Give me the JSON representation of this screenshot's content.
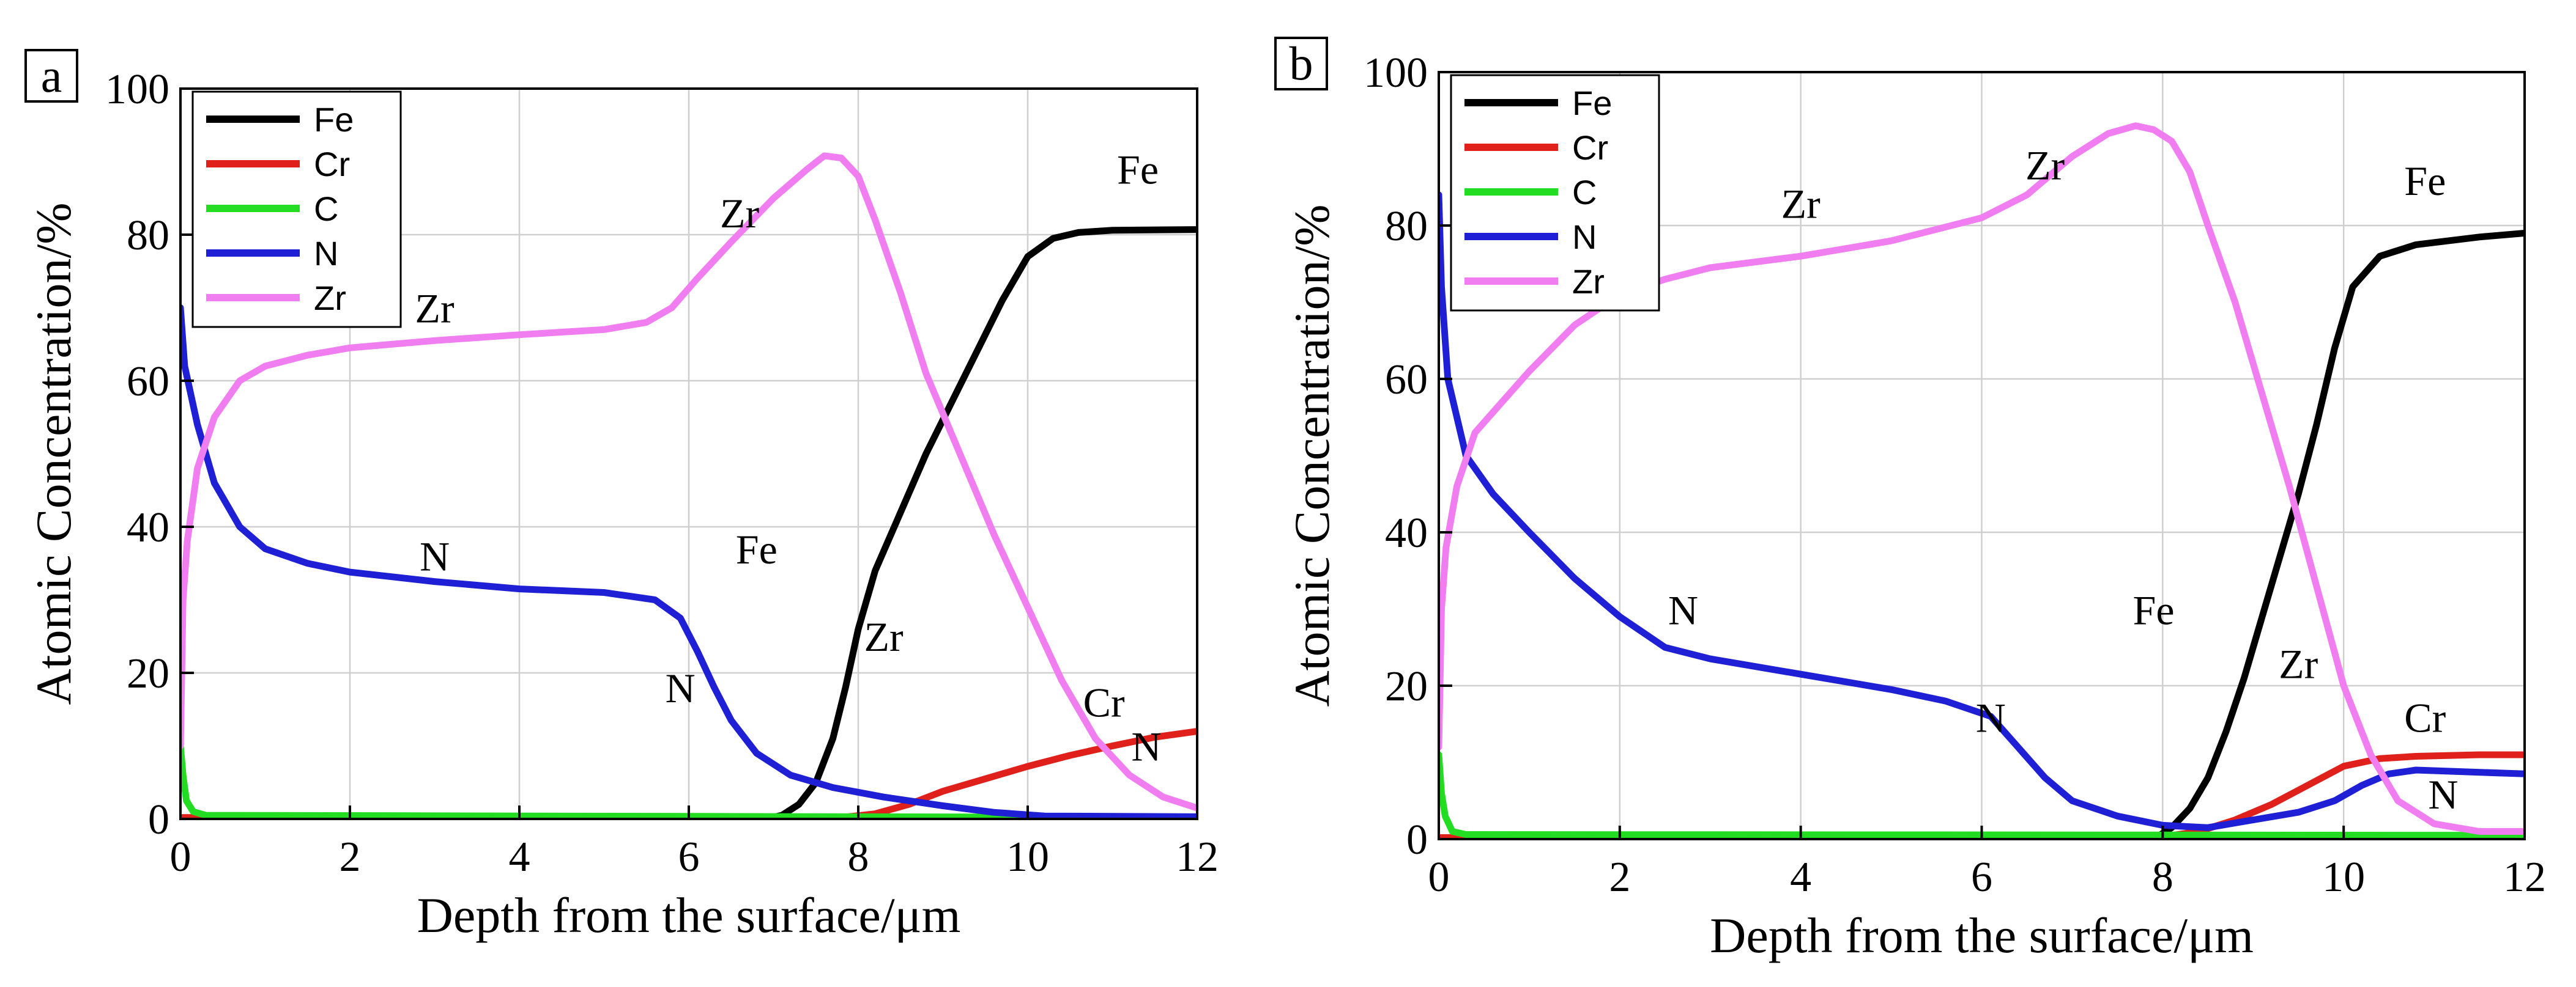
{
  "figure": {
    "panels": [
      "a",
      "b"
    ]
  },
  "chart_data": [
    {
      "type": "line",
      "panel_label": "a",
      "xlabel": "Depth from the surface/μm",
      "ylabel": "Atomic Concentration/%",
      "xlim": [
        0,
        12
      ],
      "ylim": [
        0,
        100
      ],
      "xticks": [
        0,
        2,
        4,
        6,
        8,
        10,
        12
      ],
      "yticks": [
        0,
        20,
        40,
        60,
        80,
        100
      ],
      "grid": true,
      "legend_position": "top-left",
      "series": [
        {
          "name": "Fe",
          "color": "#000000",
          "points": [
            [
              0,
              0
            ],
            [
              6.9,
              0
            ],
            [
              7.1,
              0.5
            ],
            [
              7.3,
              2
            ],
            [
              7.5,
              5
            ],
            [
              7.7,
              11
            ],
            [
              7.85,
              18
            ],
            [
              8.0,
              26
            ],
            [
              8.2,
              34
            ],
            [
              8.5,
              42
            ],
            [
              8.8,
              50
            ],
            [
              9.1,
              57
            ],
            [
              9.4,
              64
            ],
            [
              9.7,
              71
            ],
            [
              10.0,
              77
            ],
            [
              10.3,
              79.5
            ],
            [
              10.6,
              80.3
            ],
            [
              11.0,
              80.6
            ],
            [
              12.0,
              80.7
            ]
          ]
        },
        {
          "name": "Cr",
          "color": "#e0201b",
          "points": [
            [
              0,
              0.2
            ],
            [
              7.8,
              0.2
            ],
            [
              8.2,
              0.7
            ],
            [
              8.6,
              2
            ],
            [
              9.0,
              3.8
            ],
            [
              9.5,
              5.5
            ],
            [
              10.0,
              7.2
            ],
            [
              10.5,
              8.7
            ],
            [
              11.0,
              10
            ],
            [
              11.5,
              11.2
            ],
            [
              12.0,
              12
            ]
          ]
        },
        {
          "name": "C",
          "color": "#22dd22",
          "points": [
            [
              0,
              10
            ],
            [
              0.03,
              6
            ],
            [
              0.07,
              2.5
            ],
            [
              0.15,
              1
            ],
            [
              0.3,
              0.5
            ],
            [
              12,
              0.2
            ]
          ]
        },
        {
          "name": "N",
          "color": "#1f1fd6",
          "points": [
            [
              0,
              70
            ],
            [
              0.05,
              62
            ],
            [
              0.2,
              54
            ],
            [
              0.4,
              46
            ],
            [
              0.7,
              40
            ],
            [
              1.0,
              37
            ],
            [
              1.5,
              35
            ],
            [
              2.0,
              33.8
            ],
            [
              3.0,
              32.5
            ],
            [
              4.0,
              31.5
            ],
            [
              5.0,
              31
            ],
            [
              5.6,
              30
            ],
            [
              5.9,
              27.5
            ],
            [
              6.1,
              23
            ],
            [
              6.3,
              18
            ],
            [
              6.5,
              13.5
            ],
            [
              6.8,
              9
            ],
            [
              7.2,
              6
            ],
            [
              7.7,
              4.3
            ],
            [
              8.3,
              3
            ],
            [
              9.0,
              1.8
            ],
            [
              9.6,
              0.9
            ],
            [
              10.2,
              0.4
            ],
            [
              12.0,
              0.3
            ]
          ]
        },
        {
          "name": "Zr",
          "color": "#f07ef0",
          "points": [
            [
              0,
              10
            ],
            [
              0.03,
              30
            ],
            [
              0.08,
              38
            ],
            [
              0.2,
              48
            ],
            [
              0.4,
              55
            ],
            [
              0.7,
              60
            ],
            [
              1.0,
              62
            ],
            [
              1.5,
              63.5
            ],
            [
              2.0,
              64.5
            ],
            [
              3.0,
              65.5
            ],
            [
              4.0,
              66.3
            ],
            [
              5.0,
              67
            ],
            [
              5.5,
              68
            ],
            [
              5.8,
              70
            ],
            [
              6.1,
              74
            ],
            [
              6.5,
              79
            ],
            [
              7.0,
              85
            ],
            [
              7.4,
              89
            ],
            [
              7.6,
              90.8
            ],
            [
              7.8,
              90.5
            ],
            [
              8.0,
              88
            ],
            [
              8.2,
              82
            ],
            [
              8.5,
              72
            ],
            [
              8.8,
              61
            ],
            [
              9.2,
              50
            ],
            [
              9.6,
              39
            ],
            [
              10.0,
              29
            ],
            [
              10.4,
              19
            ],
            [
              10.8,
              11
            ],
            [
              11.2,
              6
            ],
            [
              11.6,
              3
            ],
            [
              12.0,
              1.5
            ]
          ]
        }
      ],
      "annotations": [
        {
          "text": "Fe",
          "x": 11.3,
          "y": 87
        },
        {
          "text": "Zr",
          "x": 6.6,
          "y": 81
        },
        {
          "text": "Zr",
          "x": 3.0,
          "y": 68
        },
        {
          "text": "N",
          "x": 3.0,
          "y": 34
        },
        {
          "text": "Fe",
          "x": 6.8,
          "y": 35
        },
        {
          "text": "Zr",
          "x": 8.3,
          "y": 23
        },
        {
          "text": "N",
          "x": 5.9,
          "y": 16
        },
        {
          "text": "Cr",
          "x": 10.9,
          "y": 14
        },
        {
          "text": "N",
          "x": 11.4,
          "y": 8
        }
      ]
    },
    {
      "type": "line",
      "panel_label": "b",
      "xlabel": "Depth from the surface/μm",
      "ylabel": "Atomic Concentration/%",
      "xlim": [
        0,
        12
      ],
      "ylim": [
        0,
        100
      ],
      "xticks": [
        0,
        2,
        4,
        6,
        8,
        10,
        12
      ],
      "yticks": [
        0,
        20,
        40,
        60,
        80,
        100
      ],
      "grid": true,
      "legend_position": "top-left",
      "series": [
        {
          "name": "Fe",
          "color": "#000000",
          "points": [
            [
              0,
              0
            ],
            [
              7.9,
              0
            ],
            [
              8.1,
              1.5
            ],
            [
              8.3,
              4
            ],
            [
              8.5,
              8
            ],
            [
              8.7,
              14
            ],
            [
              8.9,
              21
            ],
            [
              9.1,
              29
            ],
            [
              9.3,
              37
            ],
            [
              9.5,
              45
            ],
            [
              9.7,
              54
            ],
            [
              9.9,
              64
            ],
            [
              10.1,
              72
            ],
            [
              10.4,
              76
            ],
            [
              10.8,
              77.5
            ],
            [
              11.5,
              78.5
            ],
            [
              12.0,
              79
            ]
          ]
        },
        {
          "name": "Cr",
          "color": "#e0201b",
          "points": [
            [
              0,
              0.2
            ],
            [
              8.0,
              0.3
            ],
            [
              8.4,
              1
            ],
            [
              8.8,
              2.5
            ],
            [
              9.2,
              4.5
            ],
            [
              9.6,
              7
            ],
            [
              10.0,
              9.5
            ],
            [
              10.4,
              10.5
            ],
            [
              10.8,
              10.8
            ],
            [
              11.5,
              11
            ],
            [
              12.0,
              11
            ]
          ]
        },
        {
          "name": "C",
          "color": "#22dd22",
          "points": [
            [
              0,
              11
            ],
            [
              0.03,
              6
            ],
            [
              0.07,
              3
            ],
            [
              0.15,
              1
            ],
            [
              0.3,
              0.6
            ],
            [
              12,
              0.5
            ]
          ]
        },
        {
          "name": "N",
          "color": "#1f1fd6",
          "points": [
            [
              0,
              84
            ],
            [
              0.03,
              72
            ],
            [
              0.1,
              60
            ],
            [
              0.3,
              50
            ],
            [
              0.6,
              45
            ],
            [
              1.0,
              40
            ],
            [
              1.5,
              34
            ],
            [
              2.0,
              29
            ],
            [
              2.5,
              25
            ],
            [
              3.0,
              23.5
            ],
            [
              4.0,
              21.5
            ],
            [
              5.0,
              19.5
            ],
            [
              5.6,
              18
            ],
            [
              6.1,
              16
            ],
            [
              6.4,
              12
            ],
            [
              6.7,
              8
            ],
            [
              7.0,
              5
            ],
            [
              7.5,
              3
            ],
            [
              8.0,
              1.8
            ],
            [
              8.5,
              1.5
            ],
            [
              9.0,
              2.5
            ],
            [
              9.5,
              3.5
            ],
            [
              9.9,
              5
            ],
            [
              10.2,
              7
            ],
            [
              10.5,
              8.5
            ],
            [
              10.8,
              9
            ],
            [
              12.0,
              8.5
            ]
          ]
        },
        {
          "name": "Zr",
          "color": "#f07ef0",
          "points": [
            [
              0,
              12
            ],
            [
              0.03,
              30
            ],
            [
              0.08,
              38
            ],
            [
              0.2,
              46
            ],
            [
              0.4,
              53
            ],
            [
              0.7,
              57
            ],
            [
              1.0,
              61
            ],
            [
              1.5,
              67
            ],
            [
              2.0,
              71
            ],
            [
              2.5,
              73
            ],
            [
              3.0,
              74.5
            ],
            [
              4.0,
              76
            ],
            [
              5.0,
              78
            ],
            [
              5.5,
              79.5
            ],
            [
              6.0,
              81
            ],
            [
              6.5,
              84
            ],
            [
              7.0,
              89
            ],
            [
              7.4,
              92
            ],
            [
              7.7,
              93
            ],
            [
              7.9,
              92.5
            ],
            [
              8.1,
              91
            ],
            [
              8.3,
              87
            ],
            [
              8.5,
              80
            ],
            [
              8.8,
              70
            ],
            [
              9.1,
              58
            ],
            [
              9.4,
              46
            ],
            [
              9.7,
              33
            ],
            [
              10.0,
              20
            ],
            [
              10.3,
              11
            ],
            [
              10.6,
              5
            ],
            [
              11.0,
              2
            ],
            [
              11.5,
              1
            ],
            [
              12.0,
              1
            ]
          ]
        }
      ],
      "annotations": [
        {
          "text": "Fe",
          "x": 10.9,
          "y": 84
        },
        {
          "text": "Zr",
          "x": 6.7,
          "y": 86
        },
        {
          "text": "Zr",
          "x": 4.0,
          "y": 81
        },
        {
          "text": "N",
          "x": 2.7,
          "y": 28
        },
        {
          "text": "Fe",
          "x": 7.9,
          "y": 28
        },
        {
          "text": "Zr",
          "x": 9.5,
          "y": 21
        },
        {
          "text": "N",
          "x": 6.1,
          "y": 14
        },
        {
          "text": "Cr",
          "x": 10.9,
          "y": 14
        },
        {
          "text": "N",
          "x": 11.1,
          "y": 4
        }
      ]
    }
  ]
}
